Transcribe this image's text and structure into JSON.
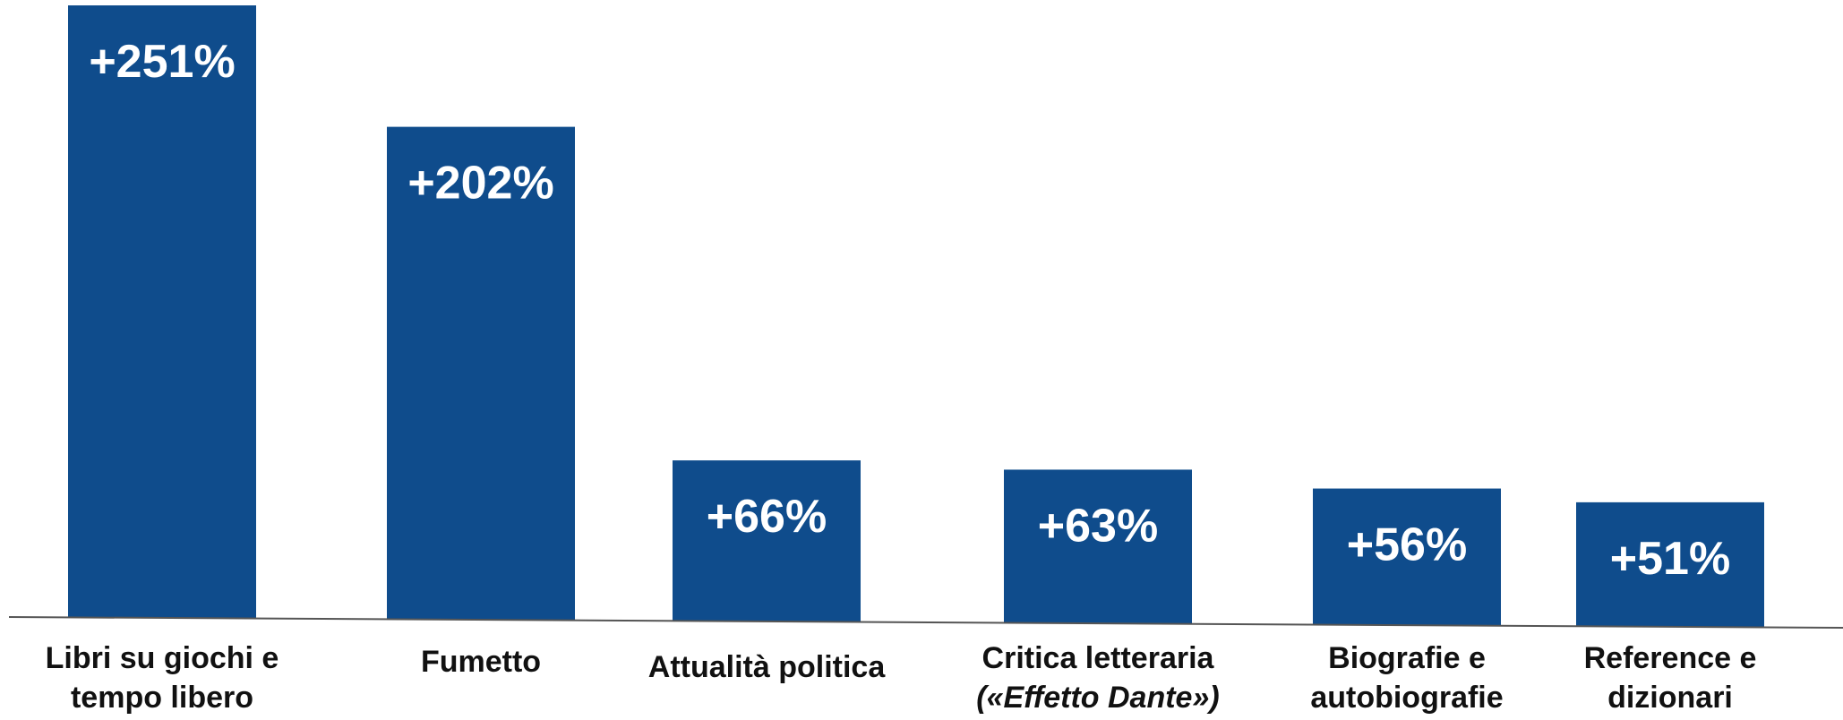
{
  "chart_data": {
    "type": "bar",
    "title": "",
    "xlabel": "",
    "ylabel": "",
    "ylim": [
      0,
      251
    ],
    "grid": false,
    "legend": "none",
    "bar_color": "#0f4c8c",
    "categories": [
      [
        "Libri su giochi e",
        "tempo libero"
      ],
      [
        "Fumetto"
      ],
      [
        "Attualità politica"
      ],
      [
        "Critica letteraria",
        "(«Effetto Dante»)"
      ],
      [
        "Biografie e",
        "autobiografie"
      ],
      [
        "Reference e",
        "dizionari"
      ]
    ],
    "values": [
      251,
      202,
      66,
      63,
      56,
      51
    ],
    "value_labels": [
      "+251%",
      "+202%",
      "+66%",
      "+63%",
      "+56%",
      "+51%"
    ]
  }
}
